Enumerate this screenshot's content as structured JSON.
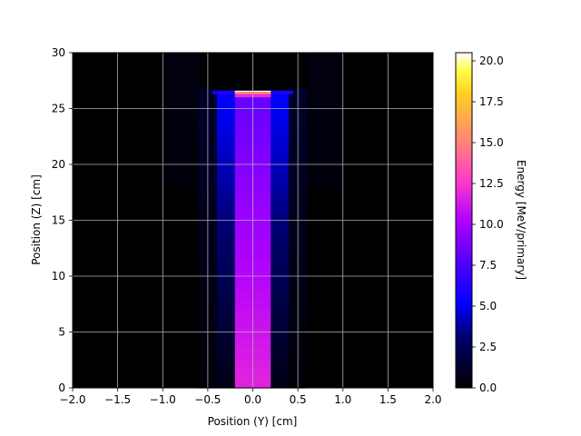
{
  "chart_data": {
    "type": "heatmap",
    "title": "",
    "xlabel": "Position (Y) [cm]",
    "ylabel": "Position (Z) [cm]",
    "xlim": [
      -2.0,
      2.0
    ],
    "ylim": [
      0,
      30
    ],
    "x_ticks": [
      "−2.0",
      "−1.5",
      "−1.0",
      "−0.5",
      "0.0",
      "0.5",
      "1.0",
      "1.5",
      "2.0"
    ],
    "x_tick_values": [
      -2.0,
      -1.5,
      -1.0,
      -0.5,
      0.0,
      0.5,
      1.0,
      1.5,
      2.0
    ],
    "y_ticks": [
      "0",
      "5",
      "10",
      "15",
      "20",
      "25",
      "30"
    ],
    "y_tick_values": [
      0,
      5,
      10,
      15,
      20,
      25,
      30
    ],
    "grid": true,
    "colormap": "gnuplot2",
    "colorbar": {
      "label": "Energy [MeV/primary]",
      "range": [
        0.0,
        20.5
      ],
      "ticks": [
        "0.0",
        "2.5",
        "5.0",
        "7.5",
        "10.0",
        "12.5",
        "15.0",
        "17.5",
        "20.0"
      ],
      "tick_values": [
        0.0,
        2.5,
        5.0,
        7.5,
        10.0,
        12.5,
        15.0,
        17.5,
        20.0
      ]
    },
    "background_value": 0.0,
    "regions": [
      {
        "name": "beam-core",
        "y_range": [
          -0.2,
          0.2
        ],
        "z_range": [
          0,
          26.5
        ],
        "value_at_z0": 11.8,
        "value_at_z26": 8.2
      },
      {
        "name": "beam-halo-left",
        "y_range": [
          -0.4,
          -0.2
        ],
        "z_range": [
          0,
          26.5
        ],
        "value_at_z0": 0.6,
        "value_at_z26": 5.2
      },
      {
        "name": "beam-halo-right",
        "y_range": [
          0.2,
          0.4
        ],
        "z_range": [
          0,
          26.5
        ],
        "value_at_z0": 0.6,
        "value_at_z26": 5.2
      },
      {
        "name": "outer-halo-left",
        "y_range": [
          -0.6,
          -0.4
        ],
        "z_range": [
          0,
          26.8
        ],
        "value_at_z0": 0.2,
        "value_at_z26": 1.2
      },
      {
        "name": "outer-halo-right",
        "y_range": [
          0.4,
          0.6
        ],
        "z_range": [
          0,
          26.8
        ],
        "value_at_z0": 0.2,
        "value_at_z26": 1.2
      },
      {
        "name": "faint-halo-left",
        "y_range": [
          -1.0,
          -0.6
        ],
        "z_range": [
          18,
          30
        ],
        "value_at_z0": 0.0,
        "value_at_z26": 0.4
      },
      {
        "name": "faint-halo-right",
        "y_range": [
          0.6,
          1.0
        ],
        "z_range": [
          18,
          30
        ],
        "value_at_z0": 0.0,
        "value_at_z26": 0.4
      }
    ],
    "entrance_layers": [
      {
        "y_range": [
          -0.45,
          0.45
        ],
        "z_range": [
          26.3,
          26.6
        ],
        "value": 6.0
      },
      {
        "y_range": [
          -0.2,
          0.2
        ],
        "z_range": [
          26.5,
          26.6
        ],
        "value": 20.5
      },
      {
        "y_range": [
          -0.2,
          0.2
        ],
        "z_range": [
          26.3,
          26.5
        ],
        "value": 15.5
      },
      {
        "y_range": [
          -0.2,
          0.2
        ],
        "z_range": [
          26.0,
          26.3
        ],
        "value": 12.0
      }
    ]
  }
}
